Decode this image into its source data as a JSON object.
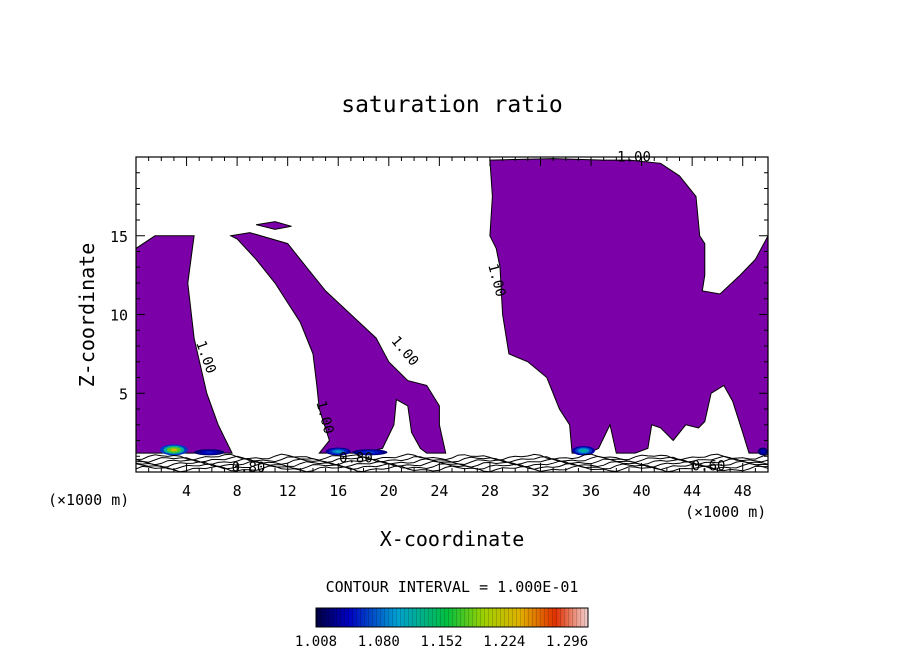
{
  "chart_data": {
    "type": "contour",
    "title": "saturation ratio",
    "xlabel": "X-coordinate",
    "ylabel": "Z-coordinate",
    "x_unit_left": "(×1000 m)",
    "x_unit_right": "(×1000 m)",
    "xlim": [
      0,
      50
    ],
    "ylim": [
      0,
      20
    ],
    "x_ticks": [
      4,
      8,
      12,
      16,
      20,
      24,
      28,
      32,
      36,
      40,
      44,
      48
    ],
    "y_ticks": [
      5,
      10,
      15
    ],
    "contour_interval_text": "CONTOUR INTERVAL = 1.000E-01",
    "colorbar_labels": [
      "1.008",
      "1.080",
      "1.152",
      "1.224",
      "1.296"
    ],
    "colorbar_range": [
      1.008,
      1.32
    ],
    "fill_color": "#7b00a8",
    "contour_labels": [
      {
        "text": "1.00",
        "x": 5.2,
        "y": 7.2,
        "rot": 70
      },
      {
        "text": "1.00",
        "x": 21.0,
        "y": 7.5,
        "rot": 50
      },
      {
        "text": "1.00",
        "x": 14.6,
        "y": 3.4,
        "rot": 75
      },
      {
        "text": "1.00",
        "x": 28.2,
        "y": 12.1,
        "rot": 75
      },
      {
        "text": "1.00",
        "x": 39.4,
        "y": 19.7,
        "rot": 0
      },
      {
        "text": "0.80",
        "x": 8.9,
        "y": 0.0,
        "rot": 0
      },
      {
        "text": "0.80",
        "x": 17.4,
        "y": 0.6,
        "rot": 0
      },
      {
        "text": "0.60",
        "x": 45.3,
        "y": 0.1,
        "rot": 0
      }
    ],
    "supersaturated_regions": [
      [
        [
          0,
          14.2
        ],
        [
          1.5,
          15.0
        ],
        [
          4.6,
          15.0
        ],
        [
          4.1,
          12.0
        ],
        [
          4.6,
          8.5
        ],
        [
          5.6,
          5.0
        ],
        [
          6.5,
          3.0
        ],
        [
          7.6,
          1.2
        ],
        [
          0,
          1.2
        ]
      ],
      [
        [
          7.5,
          15.0
        ],
        [
          9.0,
          15.2
        ],
        [
          12.0,
          14.5
        ],
        [
          13.5,
          13.0
        ],
        [
          15.0,
          11.5
        ],
        [
          17.0,
          10.0
        ],
        [
          19.0,
          8.5
        ],
        [
          20.0,
          7.0
        ],
        [
          21.5,
          5.8
        ],
        [
          23.0,
          5.5
        ],
        [
          24.0,
          4.2
        ],
        [
          24.0,
          3.0
        ],
        [
          24.5,
          1.2
        ],
        [
          23.0,
          1.2
        ],
        [
          22.5,
          1.5
        ],
        [
          21.8,
          2.5
        ],
        [
          21.5,
          4.2
        ],
        [
          20.6,
          4.6
        ],
        [
          20.4,
          3.0
        ],
        [
          19.5,
          1.5
        ],
        [
          18.0,
          1.2
        ],
        [
          14.5,
          1.2
        ],
        [
          15.3,
          2.0
        ],
        [
          14.5,
          4.0
        ],
        [
          14.3,
          5.5
        ],
        [
          14.0,
          7.5
        ],
        [
          13.0,
          9.5
        ],
        [
          11.0,
          12.0
        ],
        [
          9.5,
          13.5
        ],
        [
          8.0,
          14.8
        ]
      ],
      [
        [
          9.5,
          15.7
        ],
        [
          11.0,
          15.9
        ],
        [
          12.3,
          15.6
        ],
        [
          11.0,
          15.4
        ]
      ],
      [
        [
          28.0,
          19.8
        ],
        [
          33.0,
          19.9
        ],
        [
          37.0,
          19.8
        ],
        [
          39.0,
          19.8
        ],
        [
          41.5,
          19.6
        ],
        [
          43.0,
          18.8
        ],
        [
          44.3,
          17.5
        ],
        [
          44.6,
          15.0
        ],
        [
          45.0,
          14.5
        ],
        [
          45.0,
          12.5
        ],
        [
          44.8,
          11.5
        ],
        [
          46.2,
          11.3
        ],
        [
          47.8,
          12.5
        ],
        [
          49.0,
          13.5
        ],
        [
          50.0,
          15.0
        ],
        [
          50.0,
          1.2
        ],
        [
          48.5,
          1.2
        ],
        [
          48.0,
          2.5
        ],
        [
          47.2,
          4.5
        ],
        [
          46.5,
          5.5
        ],
        [
          45.5,
          5.0
        ],
        [
          45.0,
          3.2
        ],
        [
          44.5,
          2.8
        ],
        [
          43.5,
          3.0
        ],
        [
          42.5,
          2.0
        ],
        [
          41.5,
          2.8
        ],
        [
          40.8,
          3.0
        ],
        [
          40.5,
          1.5
        ],
        [
          39.5,
          1.2
        ],
        [
          38.0,
          1.2
        ],
        [
          37.5,
          3.0
        ],
        [
          36.6,
          1.5
        ],
        [
          35.8,
          1.2
        ],
        [
          34.5,
          1.2
        ],
        [
          34.3,
          3.0
        ],
        [
          33.5,
          4.0
        ],
        [
          32.5,
          6.0
        ],
        [
          31.0,
          7.0
        ],
        [
          29.5,
          7.5
        ],
        [
          29.0,
          10.0
        ],
        [
          28.8,
          13.0
        ],
        [
          28.5,
          14.2
        ],
        [
          28.0,
          15.0
        ],
        [
          28.2,
          17.5
        ]
      ]
    ],
    "peak_spots": [
      {
        "x": 3.0,
        "z": 1.4,
        "rx": 1.1,
        "rz": 0.35,
        "value": 1.24
      },
      {
        "x": 5.8,
        "z": 1.25,
        "rx": 1.2,
        "rz": 0.2,
        "value": 1.06
      },
      {
        "x": 16.0,
        "z": 1.3,
        "rx": 1.0,
        "rz": 0.25,
        "value": 1.11
      },
      {
        "x": 18.5,
        "z": 1.25,
        "rx": 1.4,
        "rz": 0.2,
        "value": 1.07
      },
      {
        "x": 35.4,
        "z": 1.35,
        "rx": 0.9,
        "rz": 0.3,
        "value": 1.13
      },
      {
        "x": 49.6,
        "z": 1.3,
        "rx": 0.4,
        "rz": 0.25,
        "value": 1.05
      }
    ]
  }
}
